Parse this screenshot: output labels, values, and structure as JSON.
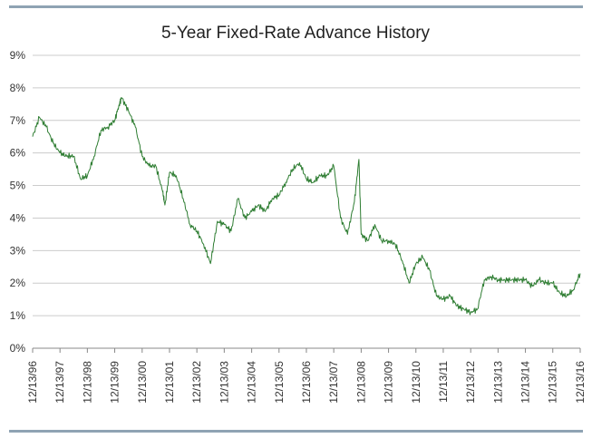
{
  "chart_data": {
    "type": "line",
    "title": "5-Year Fixed-Rate Advance History",
    "xlabel": "",
    "ylabel": "",
    "ylim": [
      0,
      9
    ],
    "grid": true,
    "legend": "none",
    "colors": {
      "line": "#2e7d32",
      "grid": "#cccccc",
      "axis": "#888888",
      "rule": "#8fa3b3"
    },
    "y_ticks": [
      0,
      1,
      2,
      3,
      4,
      5,
      6,
      7,
      8,
      9
    ],
    "y_tick_labels": [
      "0%",
      "1%",
      "2%",
      "3%",
      "4%",
      "5%",
      "6%",
      "7%",
      "8%",
      "9%"
    ],
    "x_tick_labels": [
      "12/13/96",
      "12/13/97",
      "12/13/98",
      "12/13/99",
      "12/13/00",
      "12/13/01",
      "12/13/02",
      "12/13/03",
      "12/13/04",
      "12/13/05",
      "12/13/06",
      "12/13/07",
      "12/13/08",
      "12/13/09",
      "12/13/10",
      "12/13/11",
      "12/13/12",
      "12/13/13",
      "12/13/14",
      "12/13/15",
      "12/13/16"
    ],
    "series": [
      {
        "values": [
          [
            "12/13/96",
            6.5
          ],
          [
            "03/13/97",
            7.1
          ],
          [
            "06/13/97",
            6.8
          ],
          [
            "09/13/97",
            6.3
          ],
          [
            "12/13/97",
            6.0
          ],
          [
            "03/13/98",
            5.9
          ],
          [
            "06/13/98",
            5.9
          ],
          [
            "09/13/98",
            5.2
          ],
          [
            "12/13/98",
            5.3
          ],
          [
            "03/13/99",
            5.9
          ],
          [
            "06/13/99",
            6.7
          ],
          [
            "09/13/99",
            6.8
          ],
          [
            "12/13/99",
            7.0
          ],
          [
            "02/13/00",
            7.5
          ],
          [
            "03/13/00",
            7.7
          ],
          [
            "06/13/00",
            7.3
          ],
          [
            "09/13/00",
            6.8
          ],
          [
            "12/13/00",
            5.9
          ],
          [
            "03/13/01",
            5.6
          ],
          [
            "06/13/01",
            5.6
          ],
          [
            "09/13/01",
            4.8
          ],
          [
            "10/13/01",
            4.4
          ],
          [
            "12/13/01",
            5.4
          ],
          [
            "03/13/02",
            5.3
          ],
          [
            "06/13/02",
            4.6
          ],
          [
            "09/13/02",
            3.8
          ],
          [
            "12/13/02",
            3.6
          ],
          [
            "03/13/03",
            3.2
          ],
          [
            "06/13/03",
            2.6
          ],
          [
            "09/13/03",
            3.9
          ],
          [
            "12/13/03",
            3.8
          ],
          [
            "03/13/04",
            3.6
          ],
          [
            "06/13/04",
            4.6
          ],
          [
            "09/13/04",
            4.0
          ],
          [
            "12/13/04",
            4.2
          ],
          [
            "03/13/05",
            4.4
          ],
          [
            "06/13/05",
            4.2
          ],
          [
            "09/13/05",
            4.6
          ],
          [
            "12/13/05",
            4.7
          ],
          [
            "03/13/06",
            5.1
          ],
          [
            "06/13/06",
            5.5
          ],
          [
            "09/13/06",
            5.7
          ],
          [
            "12/13/06",
            5.2
          ],
          [
            "03/13/07",
            5.1
          ],
          [
            "06/13/07",
            5.3
          ],
          [
            "09/13/07",
            5.3
          ],
          [
            "12/13/07",
            5.6
          ],
          [
            "03/13/08",
            4.0
          ],
          [
            "06/13/08",
            3.5
          ],
          [
            "09/13/08",
            4.5
          ],
          [
            "11/13/08",
            5.8
          ],
          [
            "12/13/08",
            3.5
          ],
          [
            "03/13/09",
            3.3
          ],
          [
            "06/13/09",
            3.8
          ],
          [
            "09/13/09",
            3.3
          ],
          [
            "12/13/09",
            3.3
          ],
          [
            "03/13/10",
            3.2
          ],
          [
            "06/13/10",
            2.7
          ],
          [
            "09/13/10",
            2.0
          ],
          [
            "12/13/10",
            2.6
          ],
          [
            "03/13/11",
            2.8
          ],
          [
            "06/13/11",
            2.4
          ],
          [
            "09/13/11",
            1.6
          ],
          [
            "12/13/11",
            1.5
          ],
          [
            "03/13/12",
            1.6
          ],
          [
            "06/13/12",
            1.3
          ],
          [
            "09/13/12",
            1.2
          ],
          [
            "12/13/12",
            1.1
          ],
          [
            "03/13/13",
            1.2
          ],
          [
            "06/13/13",
            2.1
          ],
          [
            "09/13/13",
            2.2
          ],
          [
            "12/13/13",
            2.1
          ],
          [
            "03/13/14",
            2.1
          ],
          [
            "06/13/14",
            2.1
          ],
          [
            "09/13/14",
            2.1
          ],
          [
            "12/13/14",
            2.1
          ],
          [
            "03/13/15",
            1.9
          ],
          [
            "06/13/15",
            2.1
          ],
          [
            "09/13/15",
            2.0
          ],
          [
            "12/13/15",
            2.0
          ],
          [
            "03/13/16",
            1.7
          ],
          [
            "06/13/16",
            1.6
          ],
          [
            "09/13/16",
            1.8
          ],
          [
            "12/13/16",
            2.3
          ]
        ]
      }
    ]
  }
}
